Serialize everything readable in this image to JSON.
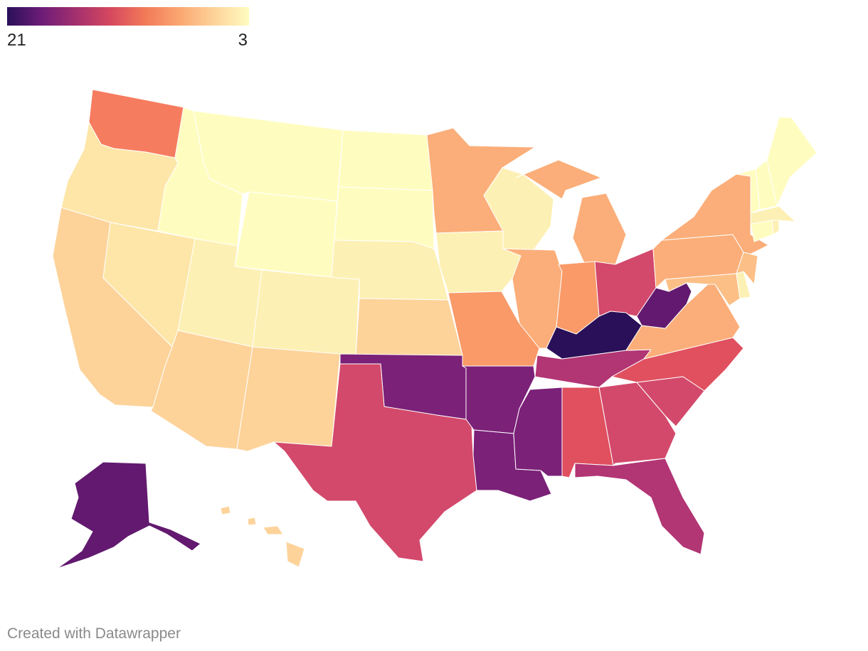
{
  "legend": {
    "left_label": "21",
    "right_label": "3",
    "gradient_colors": [
      "#2a1058",
      "#6d1c78",
      "#a4306e",
      "#d6485f",
      "#f27a58",
      "#fba771",
      "#fdd39a",
      "#fffcc0"
    ]
  },
  "credit": "Created with Datawrapper",
  "colors": {
    "c3": "#fffcc0",
    "c4": "#fdf0b4",
    "c5": "#fde6a8",
    "c6": "#fdd39a",
    "c7": "#fcbf86",
    "c8": "#fbae79",
    "c9": "#f99a68",
    "c10": "#f67c5f",
    "c13": "#e0505f",
    "c14": "#d3496b",
    "c16": "#b23574",
    "c18": "#7b2178",
    "c19": "#62196f",
    "c21": "#2a1058"
  },
  "states": [
    {
      "id": "WA",
      "value": 10
    },
    {
      "id": "OR",
      "value": 5
    },
    {
      "id": "CA",
      "value": 6
    },
    {
      "id": "NV",
      "value": 5
    },
    {
      "id": "ID",
      "value": 3
    },
    {
      "id": "MT",
      "value": 3
    },
    {
      "id": "WY",
      "value": 3
    },
    {
      "id": "UT",
      "value": 4
    },
    {
      "id": "AZ",
      "value": 6
    },
    {
      "id": "CO",
      "value": 4
    },
    {
      "id": "NM",
      "value": 6
    },
    {
      "id": "ND",
      "value": 3
    },
    {
      "id": "SD",
      "value": 3
    },
    {
      "id": "NE",
      "value": 4
    },
    {
      "id": "KS",
      "value": 6
    },
    {
      "id": "OK",
      "value": 18
    },
    {
      "id": "TX",
      "value": 14
    },
    {
      "id": "MN",
      "value": 8
    },
    {
      "id": "IA",
      "value": 4
    },
    {
      "id": "MO",
      "value": 9
    },
    {
      "id": "AR",
      "value": 18
    },
    {
      "id": "LA",
      "value": 18
    },
    {
      "id": "WI",
      "value": 4
    },
    {
      "id": "IL",
      "value": 8
    },
    {
      "id": "MI",
      "value": 8
    },
    {
      "id": "IN",
      "value": 9
    },
    {
      "id": "OH",
      "value": 14
    },
    {
      "id": "KY",
      "value": 21
    },
    {
      "id": "TN",
      "value": 16
    },
    {
      "id": "MS",
      "value": 18
    },
    {
      "id": "AL",
      "value": 13
    },
    {
      "id": "GA",
      "value": 14
    },
    {
      "id": "FL",
      "value": 16
    },
    {
      "id": "SC",
      "value": 14
    },
    {
      "id": "NC",
      "value": 13
    },
    {
      "id": "VA",
      "value": 8
    },
    {
      "id": "WV",
      "value": 19
    },
    {
      "id": "PA",
      "value": 8
    },
    {
      "id": "NY",
      "value": 8
    },
    {
      "id": "MD",
      "value": 7
    },
    {
      "id": "DE",
      "value": 4
    },
    {
      "id": "NJ",
      "value": 7
    },
    {
      "id": "CT",
      "value": 3
    },
    {
      "id": "RI",
      "value": 4
    },
    {
      "id": "MA",
      "value": 4
    },
    {
      "id": "VT",
      "value": 3
    },
    {
      "id": "NH",
      "value": 3
    },
    {
      "id": "ME",
      "value": 3
    },
    {
      "id": "AK",
      "value": 19
    },
    {
      "id": "HI",
      "value": 6
    }
  ]
}
